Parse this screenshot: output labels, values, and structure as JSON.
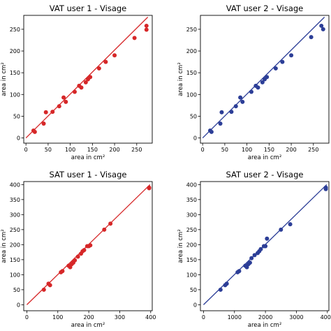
{
  "chart_data": [
    {
      "type": "scatter",
      "title": "VAT user 1 - Visage",
      "xlabel": "area in cm²",
      "ylabel": "area in cm²",
      "xlim": [
        -5,
        285
      ],
      "ylim": [
        -12,
        282
      ],
      "xticks": [
        0,
        50,
        100,
        150,
        200,
        250
      ],
      "yticks": [
        0,
        50,
        100,
        150,
        200,
        250
      ],
      "color": "#d62728",
      "fit_line": {
        "x": [
          0,
          275
        ],
        "y": [
          0,
          278
        ]
      },
      "x": [
        17,
        20,
        40,
        45,
        60,
        75,
        85,
        90,
        110,
        120,
        125,
        135,
        140,
        145,
        165,
        180,
        200,
        245,
        272,
        272
      ],
      "y": [
        17,
        14,
        33,
        59,
        60,
        73,
        93,
        83,
        106,
        120,
        116,
        128,
        135,
        140,
        160,
        175,
        190,
        230,
        258,
        249
      ]
    },
    {
      "type": "scatter",
      "title": "VAT user 2 - Visage",
      "xlabel": "area in cm²",
      "ylabel": "area in cm²",
      "xlim": [
        -5,
        285
      ],
      "ylim": [
        -12,
        282
      ],
      "xticks": [
        0,
        50,
        100,
        150,
        200,
        250
      ],
      "yticks": [
        0,
        50,
        100,
        150,
        200,
        250
      ],
      "color": "#2c3e97",
      "fit_line": {
        "x": [
          0,
          275
        ],
        "y": [
          0,
          278
        ]
      },
      "x": [
        17,
        20,
        40,
        43,
        65,
        75,
        85,
        90,
        110,
        120,
        125,
        135,
        140,
        145,
        165,
        180,
        200,
        245,
        268,
        272
      ],
      "y": [
        17,
        14,
        33,
        59,
        60,
        73,
        93,
        83,
        106,
        120,
        116,
        128,
        135,
        140,
        160,
        175,
        190,
        232,
        258,
        250
      ]
    },
    {
      "type": "scatter",
      "title": "SAT user 1 - Visage",
      "xlabel": "area in cm²",
      "ylabel": "area in cm²",
      "xlim": [
        -10,
        405
      ],
      "ylim": [
        -20,
        410
      ],
      "xticks": [
        0,
        100,
        200,
        300,
        400
      ],
      "yticks": [
        0,
        50,
        100,
        150,
        200,
        250,
        300,
        350,
        400
      ],
      "color": "#d62728",
      "fit_line": {
        "x": [
          0,
          398
        ],
        "y": [
          0,
          400
        ]
      },
      "x": [
        55,
        70,
        75,
        110,
        115,
        135,
        140,
        145,
        150,
        155,
        165,
        175,
        180,
        185,
        195,
        200,
        205,
        250,
        270,
        395,
        395
      ],
      "y": [
        50,
        70,
        65,
        108,
        112,
        130,
        125,
        135,
        140,
        148,
        160,
        170,
        178,
        182,
        195,
        195,
        198,
        250,
        270,
        388,
        390
      ]
    },
    {
      "type": "scatter",
      "title": "SAT user 2 - Visage",
      "xlabel": "area in cm²",
      "ylabel": "area in cm²",
      "xlim": [
        -100,
        4050
      ],
      "ylim": [
        -20,
        410
      ],
      "xticks": [
        0,
        1000,
        2000,
        3000,
        4000
      ],
      "yticks": [
        0,
        50,
        100,
        150,
        200,
        250,
        300,
        350,
        400
      ],
      "color": "#2c3e97",
      "fit_line": {
        "x": [
          0,
          3980
        ],
        "y": [
          0,
          400
        ]
      },
      "x": [
        550,
        700,
        750,
        1100,
        1150,
        1350,
        1400,
        1450,
        1500,
        1550,
        1650,
        1750,
        1800,
        1850,
        1950,
        2000,
        2050,
        2500,
        2800,
        3950,
        3950
      ],
      "y": [
        50,
        65,
        70,
        108,
        112,
        130,
        125,
        135,
        140,
        155,
        165,
        172,
        178,
        185,
        195,
        195,
        220,
        250,
        268,
        385,
        390
      ]
    }
  ]
}
